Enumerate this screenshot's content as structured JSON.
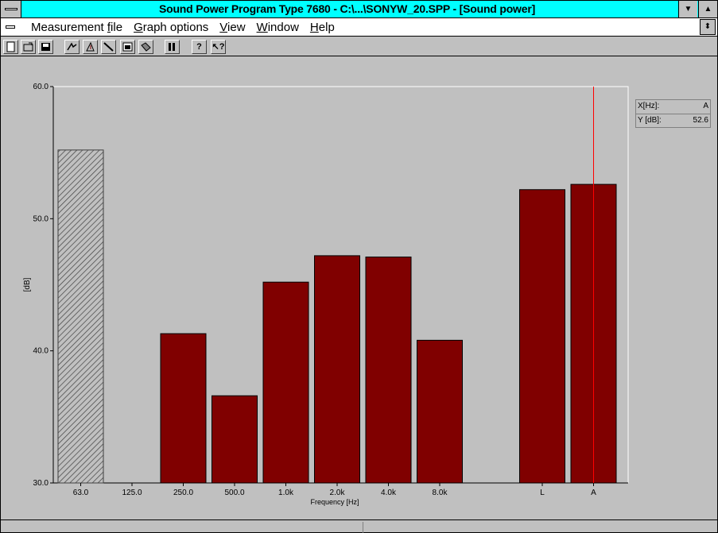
{
  "window": {
    "title": "Sound Power Program Type 7680 - C:\\...\\SONYW_20.SPP - [Sound power]"
  },
  "menu": {
    "items": [
      {
        "pre": "",
        "key": "",
        "post": "Measurement ",
        "tail": "file",
        "tail_u": true
      },
      {
        "pre": "",
        "key": "G",
        "post": "raph options"
      },
      {
        "pre": "",
        "key": "V",
        "post": "iew"
      },
      {
        "pre": "",
        "key": "W",
        "post": "indow"
      },
      {
        "pre": "",
        "key": "H",
        "post": "elp"
      }
    ]
  },
  "toolbar": {
    "icons": [
      "new-file-icon",
      "open-file-icon",
      "save-icon",
      "measure-icon",
      "microphone-icon",
      "ruler-icon",
      "window-icon",
      "print-icon",
      "bars-icon",
      "help-icon",
      "context-help-icon"
    ]
  },
  "readout": {
    "x_label": "X[Hz]:",
    "x_value": "A",
    "y_label": "Y [dB]:",
    "y_value": "52.6"
  },
  "colors": {
    "bar": "#800000",
    "cursor": "#ff0000",
    "background": "#c0c0c0",
    "titlebar": "#00ffff"
  },
  "chart_data": {
    "type": "bar",
    "xlabel": "Frequency [Hz]",
    "ylabel": "[dB]",
    "ylim": [
      30,
      60
    ],
    "y_ticks": [
      "30.0",
      "40.0",
      "50.0",
      "60.0"
    ],
    "categories": [
      "63.0",
      "125.0",
      "250.0",
      "500.0",
      "1.0k",
      "2.0k",
      "4.0k",
      "8.0k",
      "",
      "L",
      "A"
    ],
    "values": [
      55.2,
      null,
      41.3,
      36.6,
      45.2,
      47.2,
      47.1,
      40.8,
      null,
      52.2,
      52.6
    ],
    "hatched": [
      true,
      false,
      false,
      false,
      false,
      false,
      false,
      false,
      false,
      false,
      false
    ],
    "cursor_category": "A"
  }
}
